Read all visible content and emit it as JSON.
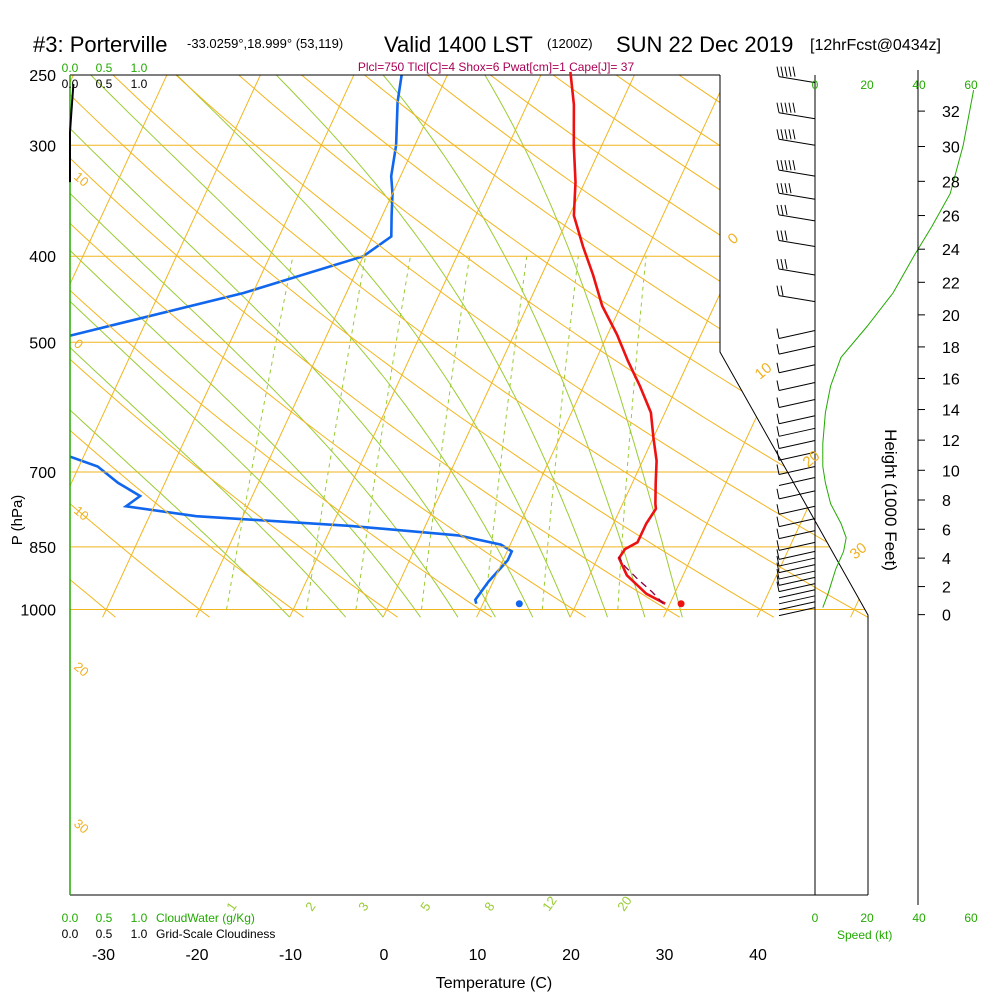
{
  "header": {
    "station": "#3: Porterville",
    "coords": "-33.0259°,18.999° (53,119)",
    "valid": "Valid 1400 LST",
    "valid_z": "(1200Z)",
    "date": "SUN 22 Dec 2019",
    "forecast": "[12hrFcst@0434z]",
    "indices": "Plcl=750 Tlcl[C]=4 Shox=6 Pwat[cm]=1 Cape[J]= 37"
  },
  "chart_data": {
    "type": "line",
    "title": "#3: Porterville",
    "xlabel": "Temperature (C)",
    "ylabel": "P (hPa)",
    "y2label": "Height (1000 Feet)",
    "x_ticks": [
      "-30",
      "-20",
      "-10",
      "0",
      "10",
      "20",
      "30",
      "40"
    ],
    "y_ticks": [
      "250",
      "300",
      "400",
      "500",
      "700",
      "850",
      "1000"
    ],
    "height_ticks": [
      "0",
      "2",
      "4",
      "6",
      "8",
      "10",
      "12",
      "14",
      "16",
      "18",
      "20",
      "22",
      "24",
      "26",
      "28",
      "30",
      "32"
    ],
    "speed_ticks": [
      "0",
      "20",
      "40",
      "60"
    ],
    "speed_label": "Speed (kt)",
    "cloudwater_ticks": [
      "0.0",
      "0.5",
      "1.0"
    ],
    "cloudwater_label": "CloudWater (g/Kg)",
    "cloudiness_ticks": [
      "0.0",
      "0.5",
      "1.0"
    ],
    "cloudiness_label": "Grid-Scale Cloudiness",
    "isotherm_labels": [
      "0",
      "10",
      "20",
      "30"
    ],
    "dry_adiabat_labels": [
      "10",
      "0",
      "10",
      "20",
      "30"
    ],
    "mixing_ratio_labels": [
      "1",
      "2",
      "3",
      "5",
      "8",
      "12",
      "20"
    ],
    "series": [
      {
        "name": "Temperature",
        "color": "#ee1111",
        "points": [
          [
            29.5,
            985
          ],
          [
            27,
            960
          ],
          [
            24,
            915
          ],
          [
            22.3,
            875
          ],
          [
            22.5,
            855
          ],
          [
            23.5,
            840
          ],
          [
            23.5,
            800
          ],
          [
            23.8,
            770
          ],
          [
            23.5,
            760
          ],
          [
            22.5,
            720
          ],
          [
            21.5,
            680
          ],
          [
            20,
            640
          ],
          [
            18.5,
            600
          ],
          [
            16,
            560
          ],
          [
            13.5,
            525
          ],
          [
            11,
            490
          ],
          [
            8,
            455
          ],
          [
            5.5,
            420
          ],
          [
            3,
            390
          ],
          [
            0.5,
            360
          ],
          [
            -1,
            330
          ],
          [
            -3,
            300
          ],
          [
            -5,
            270
          ],
          [
            -7,
            248
          ]
        ]
      },
      {
        "name": "Dewpoint",
        "color": "#1166ee",
        "points": [
          [
            9.3,
            985
          ],
          [
            9,
            975
          ],
          [
            9.5,
            930
          ],
          [
            10.5,
            880
          ],
          [
            10.5,
            860
          ],
          [
            9,
            845
          ],
          [
            4,
            825
          ],
          [
            -8,
            805
          ],
          [
            -25,
            785
          ],
          [
            -33,
            765
          ],
          [
            -32,
            745
          ],
          [
            -35,
            720
          ],
          [
            -38,
            690
          ],
          [
            -44,
            660
          ],
          [
            -46,
            630
          ],
          [
            -46,
            600
          ],
          [
            -47,
            570
          ],
          [
            -48,
            540
          ],
          [
            -50,
            500
          ],
          [
            -31,
            440
          ],
          [
            -20,
            400
          ],
          [
            -18,
            380
          ],
          [
            -19,
            360
          ],
          [
            -20,
            340
          ],
          [
            -21,
            325
          ],
          [
            -22,
            300
          ],
          [
            -24,
            268
          ],
          [
            -25,
            248
          ]
        ]
      },
      {
        "name": "Parcel",
        "color": "#880044",
        "points": [
          [
            29.3,
            985
          ],
          [
            27.5,
            955
          ],
          [
            25.4,
            925
          ],
          [
            23.4,
            895
          ],
          [
            22.2,
            872
          ]
        ]
      }
    ],
    "surface_points": [
      {
        "name": "Dewpoint",
        "t": 13.9,
        "p": 985,
        "color": "#1166ee"
      },
      {
        "name": "Temperature",
        "t": 31.2,
        "p": 985,
        "color": "#ee1111"
      }
    ],
    "cloudiness_profile": [
      [
        0.05,
        256
      ],
      [
        0.02,
        275
      ],
      [
        0.0,
        290
      ],
      [
        0.0,
        330
      ]
    ],
    "wind_speed_profile": [
      [
        3,
        995
      ],
      [
        5,
        960
      ],
      [
        8,
        900
      ],
      [
        11,
        860
      ],
      [
        12,
        830
      ],
      [
        10,
        800
      ],
      [
        6,
        760
      ],
      [
        4,
        720
      ],
      [
        3,
        690
      ],
      [
        3,
        650
      ],
      [
        4,
        600
      ],
      [
        6,
        560
      ],
      [
        10,
        520
      ],
      [
        20,
        480
      ],
      [
        30,
        440
      ],
      [
        38,
        400
      ],
      [
        45,
        370
      ],
      [
        52,
        340
      ],
      [
        57,
        300
      ],
      [
        61,
        260
      ]
    ],
    "wind_barbs": [
      {
        "p": 255,
        "speed": 50
      },
      {
        "p": 280,
        "speed": 50
      },
      {
        "p": 300,
        "speed": 50
      },
      {
        "p": 325,
        "speed": 50
      },
      {
        "p": 345,
        "speed": 40
      },
      {
        "p": 365,
        "speed": 35
      },
      {
        "p": 390,
        "speed": 35
      },
      {
        "p": 420,
        "speed": 30
      },
      {
        "p": 450,
        "speed": 25
      },
      {
        "p": 485,
        "speed": 15
      },
      {
        "p": 505,
        "speed": 10
      },
      {
        "p": 530,
        "speed": 10
      },
      {
        "p": 555,
        "speed": 10
      },
      {
        "p": 580,
        "speed": 10
      },
      {
        "p": 605,
        "speed": 10
      },
      {
        "p": 625,
        "speed": 10
      },
      {
        "p": 645,
        "speed": 10
      },
      {
        "p": 665,
        "speed": 10
      },
      {
        "p": 690,
        "speed": 10
      },
      {
        "p": 710,
        "speed": 5
      },
      {
        "p": 735,
        "speed": 10
      },
      {
        "p": 765,
        "speed": 10
      },
      {
        "p": 790,
        "speed": 10
      },
      {
        "p": 815,
        "speed": 15
      },
      {
        "p": 840,
        "speed": 10
      },
      {
        "p": 860,
        "speed": 10
      },
      {
        "p": 875,
        "speed": 10
      },
      {
        "p": 890,
        "speed": 10
      },
      {
        "p": 905,
        "speed": 10
      },
      {
        "p": 920,
        "speed": 10
      },
      {
        "p": 935,
        "speed": 10
      },
      {
        "p": 950,
        "speed": 5
      },
      {
        "p": 965,
        "speed": 5
      },
      {
        "p": 980,
        "speed": 5
      },
      {
        "p": 995,
        "speed": 5
      }
    ]
  }
}
